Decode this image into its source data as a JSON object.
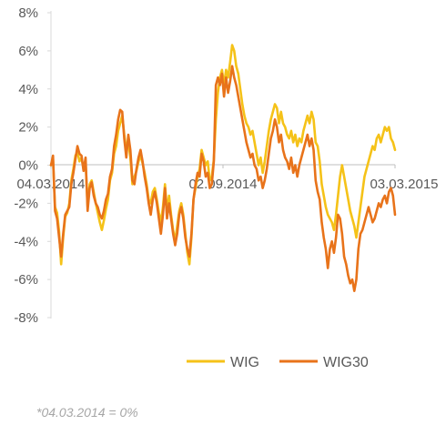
{
  "chart_data": {
    "type": "line",
    "y_tick_labels": [
      "8%",
      "6%",
      "4%",
      "2%",
      "0%",
      "-2%",
      "-4%",
      "-6%",
      "-8%"
    ],
    "ylim": [
      -8,
      8
    ],
    "x_labels": [
      "04.03.2014",
      "02.09.2014",
      "03.03.2015"
    ],
    "grid": false,
    "legend_position": "bottom",
    "series": [
      {
        "name": "WIG",
        "color": "#f5c218",
        "values": [
          0,
          0.3,
          -2.2,
          -2.5,
          -3.5,
          -5.2,
          -3.8,
          -2.7,
          -2.5,
          -2.0,
          -0.8,
          -0.2,
          0.5,
          0.7,
          0.2,
          0.4,
          -0.2,
          0.2,
          -2.2,
          -1.0,
          -0.8,
          -1.4,
          -2.0,
          -2.5,
          -3.0,
          -3.4,
          -2.9,
          -2.3,
          -1.8,
          -0.8,
          -0.4,
          0.6,
          1.0,
          1.8,
          2.2,
          2.6,
          1.6,
          0.8,
          1.2,
          0.4,
          -1.0,
          -0.6,
          -0.3,
          0.2,
          0.5,
          0.1,
          -0.4,
          -1.0,
          -1.8,
          -2.0,
          -1.4,
          -1.2,
          -1.8,
          -2.5,
          -3.0,
          -2.2,
          -1.0,
          -2.4,
          -1.6,
          -2.6,
          -3.4,
          -4.0,
          -3.2,
          -2.4,
          -2.0,
          -2.6,
          -3.6,
          -4.6,
          -5.2,
          -3.8,
          -1.8,
          -1.2,
          -0.6,
          -0.2,
          0.8,
          0.4,
          0.0,
          0.2,
          -0.8,
          -0.6,
          0.3,
          2.4,
          3.8,
          4.6,
          5.0,
          4.2,
          5.0,
          4.6,
          5.4,
          6.3,
          6.0,
          5.2,
          4.8,
          4.0,
          3.2,
          2.6,
          2.2,
          2.0,
          1.6,
          1.8,
          1.2,
          0.6,
          0.0,
          0.4,
          -0.4,
          0.2,
          1.0,
          1.8,
          2.4,
          2.8,
          3.2,
          3.0,
          2.2,
          2.8,
          2.2,
          2.0,
          1.6,
          1.4,
          1.8,
          1.2,
          1.6,
          1.0,
          1.4,
          1.2,
          1.8,
          2.2,
          2.6,
          2.2,
          2.8,
          2.4,
          1.2,
          1.0,
          0.2,
          -1.0,
          -1.6,
          -2.2,
          -2.6,
          -2.8,
          -3.0,
          -3.4,
          -2.6,
          -1.6,
          -0.6,
          0.0,
          -0.6,
          -1.2,
          -1.8,
          -2.4,
          -2.8,
          -3.2,
          -3.8,
          -3.0,
          -2.2,
          -1.4,
          -0.6,
          -0.2,
          0.2,
          0.6,
          1.0,
          0.8,
          1.4,
          1.6,
          1.2,
          1.6,
          2.0,
          1.8,
          2.0,
          1.4,
          1.2,
          0.8
        ]
      },
      {
        "name": "WIG30",
        "color": "#e8731a",
        "values": [
          0,
          0.5,
          -2.4,
          -2.8,
          -3.8,
          -4.8,
          -3.6,
          -2.6,
          -2.4,
          -2.2,
          -1.0,
          -0.4,
          0.3,
          1.0,
          0.6,
          0.5,
          -0.3,
          0.4,
          -2.4,
          -1.2,
          -0.9,
          -1.6,
          -2.0,
          -2.2,
          -2.6,
          -2.8,
          -2.4,
          -1.8,
          -1.5,
          -0.6,
          -0.2,
          1.0,
          1.6,
          2.4,
          2.9,
          2.8,
          1.4,
          0.4,
          1.6,
          0.8,
          -0.8,
          -1.0,
          -0.2,
          0.4,
          0.8,
          0.2,
          -0.6,
          -1.2,
          -2.0,
          -2.6,
          -1.8,
          -1.4,
          -2.0,
          -2.8,
          -3.6,
          -2.6,
          -1.2,
          -2.8,
          -2.0,
          -2.8,
          -3.6,
          -4.2,
          -3.6,
          -2.6,
          -2.2,
          -2.8,
          -3.8,
          -4.4,
          -4.8,
          -3.6,
          -1.8,
          -1.0,
          -0.4,
          -0.6,
          0.6,
          0.2,
          -0.6,
          -0.4,
          -1.2,
          -1.0,
          0.2,
          4.2,
          4.6,
          4.2,
          4.8,
          3.6,
          4.6,
          3.8,
          4.4,
          5.2,
          4.6,
          4.2,
          3.6,
          3.0,
          2.4,
          1.8,
          1.2,
          0.8,
          0.4,
          0.6,
          0.0,
          -0.2,
          -0.8,
          -0.6,
          -1.2,
          -0.8,
          -0.2,
          0.6,
          1.4,
          1.8,
          2.4,
          2.0,
          1.2,
          1.6,
          0.8,
          0.4,
          0.2,
          -0.2,
          0.4,
          -0.4,
          0.0,
          -0.6,
          0.0,
          0.4,
          0.8,
          1.2,
          1.6,
          1.0,
          1.4,
          0.8,
          -0.8,
          -1.4,
          -1.8,
          -3.0,
          -3.8,
          -4.4,
          -5.4,
          -4.4,
          -4.0,
          -4.6,
          -3.8,
          -2.6,
          -2.8,
          -3.6,
          -4.8,
          -5.2,
          -5.8,
          -6.2,
          -6.0,
          -6.6,
          -6.0,
          -4.4,
          -3.6,
          -3.4,
          -3.0,
          -2.6,
          -2.2,
          -2.6,
          -3.0,
          -2.8,
          -2.4,
          -2.0,
          -2.2,
          -1.8,
          -1.6,
          -2.0,
          -1.4,
          -1.2,
          -1.6,
          -2.6
        ]
      }
    ],
    "footnote": "*04.03.2014 = 0%"
  }
}
